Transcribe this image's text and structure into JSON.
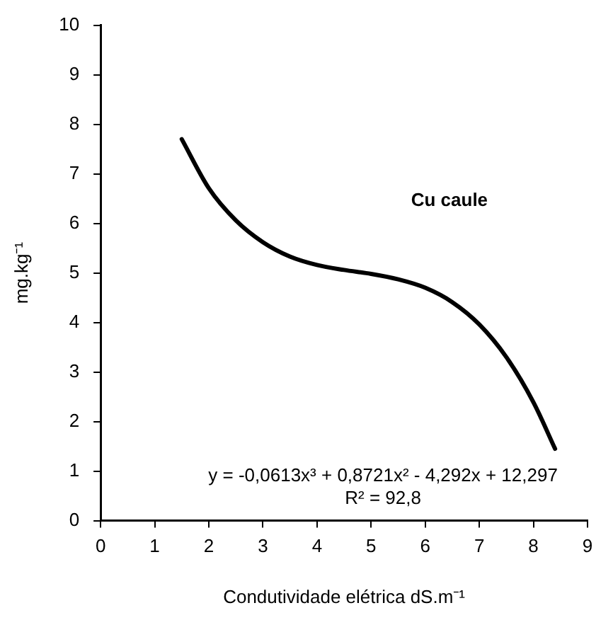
{
  "chart_data": {
    "type": "line",
    "xlabel": "Condutividade elétrica dS.m⁻¹",
    "ylabel": "mg.kg⁻¹",
    "xlim": [
      0,
      9
    ],
    "xticks": [
      0,
      1,
      2,
      3,
      4,
      5,
      6,
      7,
      8,
      9
    ],
    "ylim": [
      0,
      10
    ],
    "yticks": [
      0,
      1,
      2,
      3,
      4,
      5,
      6,
      7,
      8,
      9,
      10
    ],
    "grid": false,
    "legend": false,
    "marker": "none",
    "line_style": "solid",
    "series": [
      {
        "name": "Cu caule",
        "color": "#000000",
        "x": [
          1.5,
          2,
          2.5,
          3,
          3.5,
          4,
          4.5,
          5,
          5.5,
          6,
          6.5,
          7,
          7.5,
          8,
          8.4
        ],
        "values": [
          7.7,
          6.71,
          6.06,
          5.62,
          5.33,
          5.16,
          5.06,
          4.98,
          4.87,
          4.7,
          4.41,
          3.96,
          3.3,
          2.39,
          1.45
        ]
      }
    ],
    "annotations": [
      "y = -0,0613x³ + 0,8721x² - 4,292x + 12,297",
      "R² = 92,8"
    ]
  }
}
